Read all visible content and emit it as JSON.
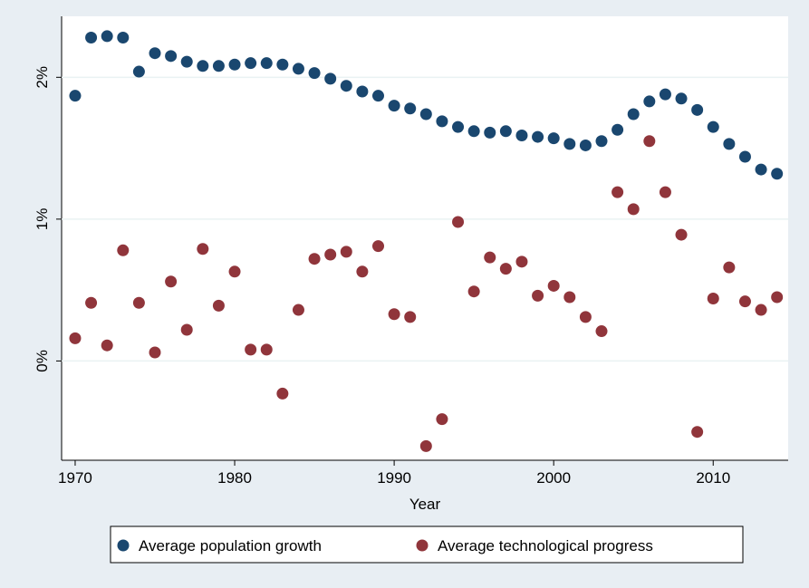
{
  "chart_data": {
    "type": "scatter",
    "x_label": "Year",
    "x": [
      1970,
      1971,
      1972,
      1973,
      1974,
      1975,
      1976,
      1977,
      1978,
      1979,
      1980,
      1981,
      1982,
      1983,
      1984,
      1985,
      1986,
      1987,
      1988,
      1989,
      1990,
      1991,
      1992,
      1993,
      1994,
      1995,
      1996,
      1997,
      1998,
      1999,
      2000,
      2001,
      2002,
      2003,
      2004,
      2005,
      2006,
      2007,
      2008,
      2009,
      2010,
      2011,
      2012,
      2013,
      2014
    ],
    "series": [
      {
        "name": "Average population growth",
        "color": "#1a476f",
        "values": [
          1.87,
          2.28,
          2.29,
          2.28,
          2.04,
          2.17,
          2.15,
          2.11,
          2.08,
          2.08,
          2.09,
          2.1,
          2.1,
          2.09,
          2.06,
          2.03,
          1.99,
          1.94,
          1.9,
          1.87,
          1.8,
          1.78,
          1.74,
          1.69,
          1.65,
          1.62,
          1.61,
          1.62,
          1.59,
          1.58,
          1.57,
          1.53,
          1.52,
          1.55,
          1.63,
          1.74,
          1.83,
          1.88,
          1.85,
          1.77,
          1.65,
          1.53,
          1.44,
          1.35,
          1.32
        ]
      },
      {
        "name": "Average technological progress",
        "color": "#90353b",
        "values": [
          0.16,
          0.41,
          0.11,
          0.78,
          0.41,
          0.06,
          0.56,
          0.22,
          0.79,
          0.39,
          0.63,
          0.08,
          0.08,
          -0.23,
          0.36,
          0.72,
          0.75,
          0.77,
          0.63,
          0.81,
          0.33,
          0.31,
          -0.6,
          -0.41,
          0.98,
          0.49,
          0.73,
          0.65,
          0.7,
          0.46,
          0.53,
          0.45,
          0.31,
          0.21,
          1.19,
          1.07,
          1.55,
          1.19,
          0.89,
          -0.5,
          0.44,
          0.66,
          0.42,
          0.36,
          0.45
        ]
      }
    ],
    "xlim": [
      1969.15,
      2014.7
    ],
    "xticks": [
      1970,
      1980,
      1990,
      2000,
      2010
    ],
    "ylim": [
      -0.7,
      2.43
    ],
    "yticks": [
      {
        "value": 0,
        "label": "0%"
      },
      {
        "value": 1,
        "label": "1%"
      },
      {
        "value": 2,
        "label": "2%"
      }
    ],
    "grid": true
  }
}
